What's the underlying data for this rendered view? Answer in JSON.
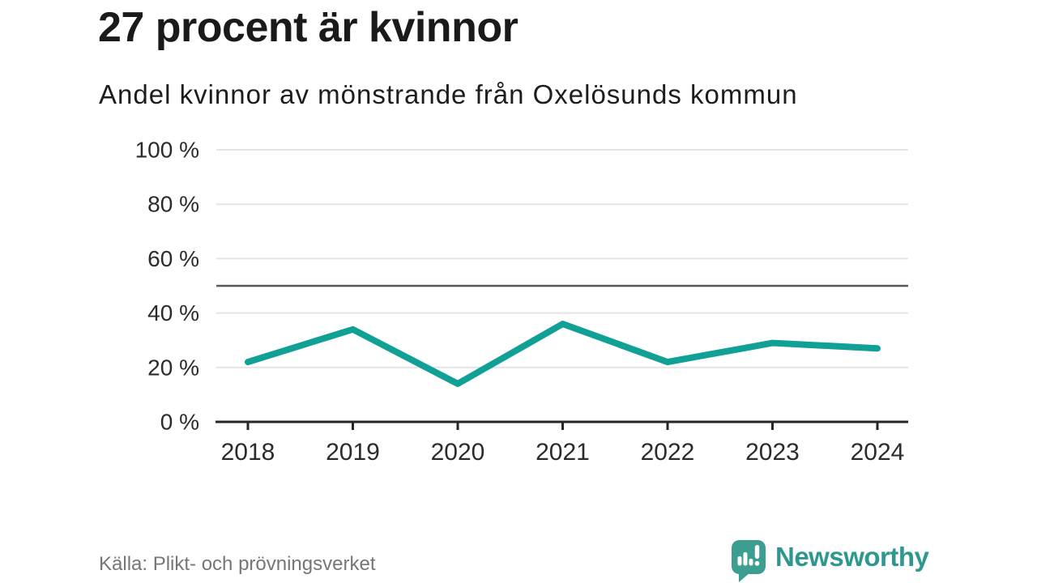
{
  "header": {
    "title": "27 procent är kvinnor",
    "subtitle": "Andel kvinnor av mönstrande från Oxelösunds kommun"
  },
  "chart_data": {
    "type": "line",
    "title": "27 procent är kvinnor",
    "subtitle": "Andel kvinnor av mönstrande från Oxelösunds kommun",
    "x": [
      "2018",
      "2019",
      "2020",
      "2021",
      "2022",
      "2023",
      "2024"
    ],
    "values": [
      22,
      34,
      14,
      36,
      22,
      29,
      27
    ],
    "xlabel": "",
    "ylabel": "",
    "ylim": [
      0,
      100
    ],
    "yticks": [
      0,
      20,
      40,
      60,
      80,
      100
    ],
    "ytick_suffix": " %",
    "reference_line": 50,
    "grid": "horizontal",
    "legend": "none"
  },
  "footer": {
    "source": "Källa: Plikt- och prövningsverket",
    "brand": "Newsworthy"
  },
  "colors": {
    "line": "#10a096",
    "grid": "#e4e4e4",
    "reference": "#58585b",
    "axis": "#262626",
    "tick_label": "#2b2b2b",
    "title": "#1a1a1a",
    "subtitle": "#1d1d1b",
    "source": "#767676",
    "brand_text": "#2f988e",
    "brand_icon": "#3b9e90"
  }
}
